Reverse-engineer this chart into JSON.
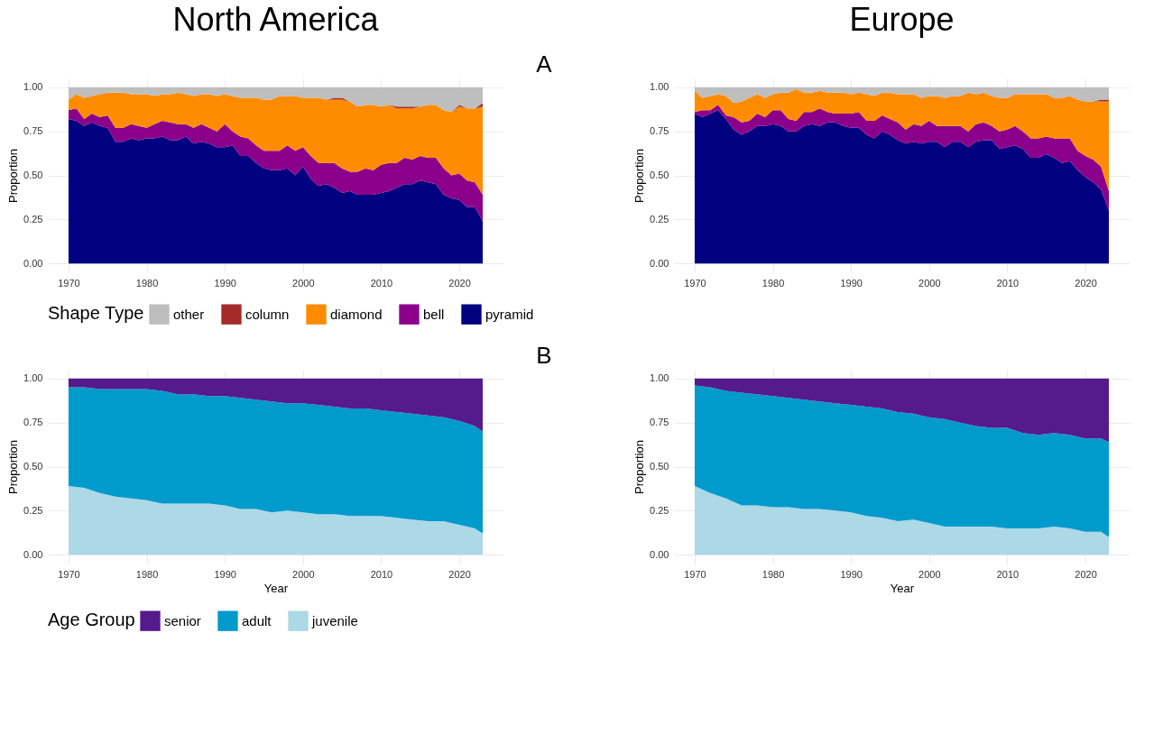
{
  "chart_data": [
    {
      "type": "area",
      "title": "North America",
      "ylabel": "Proportion",
      "annotations": [
        "A"
      ],
      "stacked": true,
      "grid": true,
      "legend": "bottom",
      "legend_title": "Shape Type",
      "xlim": [
        1967.35,
        2025.65
      ],
      "xticks": [
        1970,
        1980,
        1990,
        2000,
        2010,
        2020
      ],
      "ylim": [
        -0.05,
        1.05
      ],
      "yticks": [
        {
          "value": 0,
          "label": "0.00"
        },
        {
          "value": 0.25,
          "label": "0.25"
        },
        {
          "value": 0.5,
          "label": "0.50"
        },
        {
          "value": 0.75,
          "label": "0.75"
        },
        {
          "value": 1,
          "label": "1.00"
        }
      ],
      "x": [
        1970,
        1971,
        1972,
        1973,
        1974,
        1975,
        1976,
        1977,
        1978,
        1979,
        1980,
        1981,
        1982,
        1983,
        1984,
        1985,
        1986,
        1987,
        1988,
        1989,
        1990,
        1991,
        1992,
        1993,
        1994,
        1995,
        1996,
        1997,
        1998,
        1999,
        2000,
        2001,
        2002,
        2003,
        2004,
        2005,
        2006,
        2007,
        2008,
        2009,
        2010,
        2011,
        2012,
        2013,
        2014,
        2015,
        2016,
        2017,
        2018,
        2019,
        2020,
        2021,
        2022,
        2023
      ],
      "series": [
        {
          "name": "pyramid",
          "color": "#000080",
          "values": [
            0.82,
            0.81,
            0.78,
            0.8,
            0.78,
            0.77,
            0.69,
            0.69,
            0.71,
            0.7,
            0.71,
            0.71,
            0.72,
            0.7,
            0.7,
            0.72,
            0.68,
            0.69,
            0.68,
            0.66,
            0.66,
            0.67,
            0.61,
            0.61,
            0.57,
            0.54,
            0.53,
            0.53,
            0.54,
            0.5,
            0.55,
            0.48,
            0.44,
            0.45,
            0.43,
            0.4,
            0.41,
            0.39,
            0.39,
            0.39,
            0.4,
            0.41,
            0.43,
            0.45,
            0.45,
            0.47,
            0.46,
            0.45,
            0.39,
            0.37,
            0.36,
            0.32,
            0.32,
            0.24
          ]
        },
        {
          "name": "bell",
          "color": "#8b008b",
          "values": [
            0.05,
            0.07,
            0.04,
            0.05,
            0.05,
            0.07,
            0.08,
            0.08,
            0.08,
            0.08,
            0.06,
            0.08,
            0.09,
            0.1,
            0.09,
            0.07,
            0.09,
            0.1,
            0.09,
            0.09,
            0.13,
            0.08,
            0.11,
            0.1,
            0.1,
            0.1,
            0.11,
            0.11,
            0.13,
            0.14,
            0.11,
            0.13,
            0.13,
            0.12,
            0.14,
            0.14,
            0.11,
            0.13,
            0.15,
            0.14,
            0.16,
            0.16,
            0.14,
            0.15,
            0.14,
            0.14,
            0.14,
            0.15,
            0.15,
            0.13,
            0.15,
            0.15,
            0.14,
            0.15
          ]
        },
        {
          "name": "diamond",
          "color": "#ff8c00",
          "values": [
            0.06,
            0.08,
            0.12,
            0.1,
            0.13,
            0.13,
            0.2,
            0.2,
            0.17,
            0.18,
            0.19,
            0.16,
            0.15,
            0.16,
            0.18,
            0.17,
            0.18,
            0.17,
            0.19,
            0.2,
            0.17,
            0.2,
            0.22,
            0.23,
            0.27,
            0.29,
            0.29,
            0.31,
            0.28,
            0.31,
            0.28,
            0.33,
            0.37,
            0.36,
            0.36,
            0.39,
            0.4,
            0.37,
            0.36,
            0.37,
            0.33,
            0.33,
            0.31,
            0.28,
            0.29,
            0.28,
            0.3,
            0.3,
            0.33,
            0.36,
            0.38,
            0.41,
            0.42,
            0.5
          ]
        },
        {
          "name": "column",
          "color": "#a52a2a",
          "values": [
            0,
            0,
            0,
            0,
            0,
            0,
            0,
            0,
            0,
            0,
            0,
            0,
            0,
            0,
            0,
            0,
            0,
            0,
            0,
            0,
            0,
            0,
            0,
            0,
            0,
            0,
            0,
            0,
            0,
            0,
            0,
            0,
            0,
            0,
            0.01,
            0.01,
            0,
            0,
            0,
            0,
            0,
            0,
            0.01,
            0.01,
            0.01,
            0,
            0,
            0,
            0,
            0,
            0.01,
            0,
            0,
            0.02
          ]
        },
        {
          "name": "other",
          "color": "#bebebe",
          "values": [
            0.07,
            0.04,
            0.06,
            0.05,
            0.04,
            0.03,
            0.03,
            0.03,
            0.04,
            0.04,
            0.04,
            0.05,
            0.04,
            0.04,
            0.03,
            0.04,
            0.05,
            0.04,
            0.04,
            0.05,
            0.04,
            0.05,
            0.06,
            0.06,
            0.06,
            0.07,
            0.07,
            0.05,
            0.05,
            0.05,
            0.06,
            0.06,
            0.06,
            0.07,
            0.06,
            0.06,
            0.08,
            0.11,
            0.1,
            0.1,
            0.11,
            0.1,
            0.11,
            0.11,
            0.11,
            0.11,
            0.1,
            0.1,
            0.13,
            0.14,
            0.1,
            0.12,
            0.12,
            0.09
          ]
        }
      ]
    },
    {
      "type": "area",
      "title": "Europe",
      "ylabel": "Proportion",
      "stacked": true,
      "grid": true,
      "xlim": [
        1967.35,
        2025.65
      ],
      "xticks": [
        1970,
        1980,
        1990,
        2000,
        2010,
        2020
      ],
      "ylim": [
        -0.05,
        1.05
      ],
      "yticks": [
        {
          "value": 0,
          "label": "0.00"
        },
        {
          "value": 0.25,
          "label": "0.25"
        },
        {
          "value": 0.5,
          "label": "0.50"
        },
        {
          "value": 0.75,
          "label": "0.75"
        },
        {
          "value": 1,
          "label": "1.00"
        }
      ],
      "x": [
        1970,
        1971,
        1972,
        1973,
        1974,
        1975,
        1976,
        1977,
        1978,
        1979,
        1980,
        1981,
        1982,
        1983,
        1984,
        1985,
        1986,
        1987,
        1988,
        1989,
        1990,
        1991,
        1992,
        1993,
        1994,
        1995,
        1996,
        1997,
        1998,
        1999,
        2000,
        2001,
        2002,
        2003,
        2004,
        2005,
        2006,
        2007,
        2008,
        2009,
        2010,
        2011,
        2012,
        2013,
        2014,
        2015,
        2016,
        2017,
        2018,
        2019,
        2020,
        2021,
        2022,
        2023
      ],
      "series": [
        {
          "color": "#000080",
          "values": [
            0.85,
            0.83,
            0.85,
            0.87,
            0.82,
            0.76,
            0.73,
            0.75,
            0.78,
            0.78,
            0.79,
            0.78,
            0.75,
            0.75,
            0.78,
            0.79,
            0.78,
            0.8,
            0.8,
            0.78,
            0.77,
            0.77,
            0.73,
            0.71,
            0.75,
            0.73,
            0.7,
            0.68,
            0.69,
            0.68,
            0.69,
            0.69,
            0.66,
            0.69,
            0.69,
            0.66,
            0.69,
            0.7,
            0.7,
            0.65,
            0.66,
            0.67,
            0.65,
            0.6,
            0.6,
            0.62,
            0.6,
            0.57,
            0.58,
            0.53,
            0.49,
            0.46,
            0.42,
            0.3
          ]
        },
        {
          "color": "#8b008b",
          "values": [
            0.01,
            0.04,
            0.02,
            0.03,
            0.02,
            0.07,
            0.07,
            0.06,
            0.07,
            0.05,
            0.08,
            0.09,
            0.07,
            0.06,
            0.08,
            0.07,
            0.1,
            0.06,
            0.05,
            0.07,
            0.08,
            0.09,
            0.08,
            0.1,
            0.09,
            0.09,
            0.1,
            0.08,
            0.1,
            0.1,
            0.12,
            0.09,
            0.12,
            0.09,
            0.09,
            0.09,
            0.1,
            0.1,
            0.08,
            0.1,
            0.1,
            0.11,
            0.1,
            0.11,
            0.11,
            0.1,
            0.11,
            0.14,
            0.13,
            0.11,
            0.12,
            0.13,
            0.13,
            0.11
          ]
        },
        {
          "color": "#ff8c00",
          "values": [
            0.12,
            0.07,
            0.08,
            0.06,
            0.11,
            0.08,
            0.12,
            0.13,
            0.11,
            0.11,
            0.09,
            0.1,
            0.15,
            0.18,
            0.11,
            0.11,
            0.1,
            0.11,
            0.12,
            0.12,
            0.11,
            0.11,
            0.15,
            0.14,
            0.13,
            0.15,
            0.16,
            0.2,
            0.17,
            0.16,
            0.14,
            0.17,
            0.16,
            0.17,
            0.17,
            0.22,
            0.17,
            0.17,
            0.17,
            0.19,
            0.18,
            0.18,
            0.21,
            0.25,
            0.25,
            0.24,
            0.23,
            0.23,
            0.24,
            0.29,
            0.31,
            0.33,
            0.37,
            0.51
          ]
        },
        {
          "color": "#a52a2a",
          "values": [
            0,
            0,
            0,
            0,
            0,
            0,
            0,
            0,
            0,
            0,
            0,
            0,
            0,
            0,
            0,
            0,
            0,
            0,
            0,
            0,
            0,
            0,
            0,
            0,
            0,
            0,
            0,
            0,
            0,
            0,
            0,
            0,
            0,
            0,
            0,
            0,
            0,
            0,
            0,
            0,
            0,
            0,
            0,
            0,
            0,
            0,
            0,
            0,
            0,
            0,
            0,
            0,
            0.01,
            0.01
          ]
        },
        {
          "color": "#bebebe",
          "values": [
            0.02,
            0.06,
            0.05,
            0.04,
            0.05,
            0.09,
            0.08,
            0.06,
            0.04,
            0.06,
            0.04,
            0.03,
            0.03,
            0.01,
            0.03,
            0.03,
            0.02,
            0.03,
            0.03,
            0.03,
            0.04,
            0.03,
            0.04,
            0.05,
            0.03,
            0.03,
            0.04,
            0.04,
            0.04,
            0.06,
            0.05,
            0.05,
            0.06,
            0.05,
            0.05,
            0.03,
            0.04,
            0.03,
            0.05,
            0.06,
            0.06,
            0.04,
            0.04,
            0.04,
            0.04,
            0.04,
            0.06,
            0.06,
            0.05,
            0.07,
            0.08,
            0.08,
            0.07,
            0.07
          ]
        }
      ]
    },
    {
      "type": "area",
      "xlabel": "Year",
      "ylabel": "Proportion",
      "annotations": [
        "B"
      ],
      "stacked": true,
      "grid": true,
      "legend": "bottom",
      "legend_title": "Age Group",
      "xlim": [
        1967.35,
        2025.65
      ],
      "xticks": [
        1970,
        1980,
        1990,
        2000,
        2010,
        2020
      ],
      "ylim": [
        -0.05,
        1.05
      ],
      "yticks": [
        {
          "value": 0,
          "label": "0.00"
        },
        {
          "value": 0.25,
          "label": "0.25"
        },
        {
          "value": 0.5,
          "label": "0.50"
        },
        {
          "value": 0.75,
          "label": "0.75"
        },
        {
          "value": 1,
          "label": "1.00"
        }
      ],
      "x": [
        1970,
        1972,
        1974,
        1976,
        1978,
        1980,
        1982,
        1984,
        1986,
        1988,
        1990,
        1992,
        1994,
        1996,
        1998,
        2000,
        2002,
        2004,
        2006,
        2008,
        2010,
        2012,
        2014,
        2016,
        2018,
        2020,
        2022,
        2023
      ],
      "series": [
        {
          "name": "juvenile",
          "color": "#add8e6",
          "values": [
            0.39,
            0.38,
            0.35,
            0.33,
            0.32,
            0.31,
            0.29,
            0.29,
            0.29,
            0.29,
            0.28,
            0.26,
            0.26,
            0.24,
            0.25,
            0.24,
            0.23,
            0.23,
            0.22,
            0.22,
            0.22,
            0.21,
            0.2,
            0.19,
            0.19,
            0.17,
            0.15,
            0.12
          ]
        },
        {
          "name": "adult",
          "color": "#009acd",
          "values": [
            0.56,
            0.57,
            0.59,
            0.61,
            0.62,
            0.63,
            0.64,
            0.62,
            0.62,
            0.61,
            0.62,
            0.63,
            0.62,
            0.63,
            0.61,
            0.62,
            0.62,
            0.61,
            0.61,
            0.61,
            0.6,
            0.6,
            0.6,
            0.6,
            0.59,
            0.59,
            0.58,
            0.58
          ]
        },
        {
          "name": "senior",
          "color": "#551a8b",
          "values": [
            0.05,
            0.05,
            0.06,
            0.06,
            0.06,
            0.06,
            0.07,
            0.09,
            0.09,
            0.1,
            0.1,
            0.11,
            0.12,
            0.13,
            0.14,
            0.14,
            0.15,
            0.16,
            0.17,
            0.17,
            0.18,
            0.19,
            0.2,
            0.21,
            0.22,
            0.24,
            0.27,
            0.3
          ]
        }
      ]
    },
    {
      "type": "area",
      "xlabel": "Year",
      "ylabel": "Proportion",
      "stacked": true,
      "grid": true,
      "xlim": [
        1967.35,
        2025.65
      ],
      "xticks": [
        1970,
        1980,
        1990,
        2000,
        2010,
        2020
      ],
      "ylim": [
        -0.05,
        1.05
      ],
      "yticks": [
        {
          "value": 0,
          "label": "0.00"
        },
        {
          "value": 0.25,
          "label": "0.25"
        },
        {
          "value": 0.5,
          "label": "0.50"
        },
        {
          "value": 0.75,
          "label": "0.75"
        },
        {
          "value": 1,
          "label": "1.00"
        }
      ],
      "x": [
        1970,
        1972,
        1974,
        1976,
        1978,
        1980,
        1982,
        1984,
        1986,
        1988,
        1990,
        1992,
        1994,
        1996,
        1998,
        2000,
        2002,
        2004,
        2006,
        2008,
        2010,
        2012,
        2014,
        2016,
        2018,
        2020,
        2022,
        2023
      ],
      "series": [
        {
          "color": "#add8e6",
          "values": [
            0.39,
            0.35,
            0.32,
            0.28,
            0.28,
            0.27,
            0.27,
            0.26,
            0.26,
            0.25,
            0.24,
            0.22,
            0.21,
            0.19,
            0.2,
            0.18,
            0.16,
            0.16,
            0.16,
            0.16,
            0.15,
            0.15,
            0.15,
            0.16,
            0.15,
            0.13,
            0.13,
            0.1
          ]
        },
        {
          "color": "#009acd",
          "values": [
            0.57,
            0.6,
            0.61,
            0.64,
            0.63,
            0.63,
            0.62,
            0.62,
            0.61,
            0.61,
            0.61,
            0.62,
            0.62,
            0.62,
            0.6,
            0.6,
            0.61,
            0.59,
            0.57,
            0.56,
            0.57,
            0.54,
            0.53,
            0.53,
            0.53,
            0.53,
            0.53,
            0.54
          ]
        },
        {
          "color": "#551a8b",
          "values": [
            0.04,
            0.05,
            0.07,
            0.08,
            0.09,
            0.1,
            0.11,
            0.12,
            0.13,
            0.14,
            0.15,
            0.16,
            0.17,
            0.19,
            0.2,
            0.22,
            0.23,
            0.25,
            0.27,
            0.28,
            0.28,
            0.31,
            0.32,
            0.31,
            0.32,
            0.34,
            0.34,
            0.36
          ]
        }
      ]
    }
  ]
}
